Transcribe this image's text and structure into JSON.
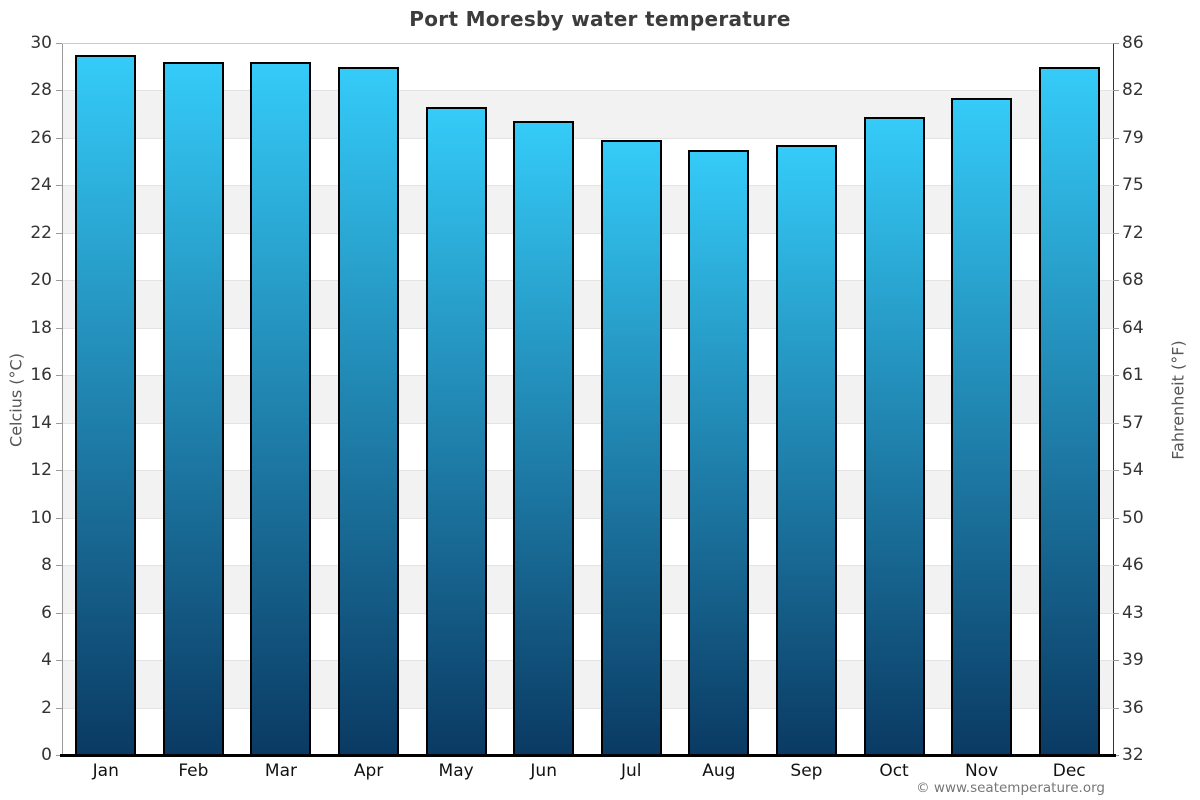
{
  "chart_data": {
    "type": "bar",
    "title": "Port Moresby water temperature",
    "categories": [
      "Jan",
      "Feb",
      "Mar",
      "Apr",
      "May",
      "Jun",
      "Jul",
      "Aug",
      "Sep",
      "Oct",
      "Nov",
      "Dec"
    ],
    "values": [
      29.5,
      29.2,
      29.2,
      29.0,
      27.3,
      26.7,
      25.9,
      25.5,
      25.7,
      26.9,
      27.7,
      29.0
    ],
    "series_name": "Water temperature (°C)",
    "ylabel_left": "Celcius (°C)",
    "ylabel_right": "Fahrenheit (°F)",
    "ylim_celsius": [
      0,
      30
    ],
    "celsius_ticks": [
      30,
      28,
      26,
      24,
      22,
      20,
      18,
      16,
      14,
      12,
      10,
      8,
      6,
      4,
      2,
      0
    ],
    "fahrenheit_ticks": [
      86,
      82,
      79,
      75,
      72,
      68,
      64,
      61,
      57,
      54,
      50,
      46,
      43,
      39,
      36,
      32
    ],
    "grid": "horizontal-bands",
    "legend": "none",
    "colors": {
      "bar_gradient_top": "#35cbf8",
      "bar_gradient_bottom": "#0a3a63",
      "bar_border": "#000000",
      "band_gray": "#f2f2f2",
      "band_white": "#ffffff",
      "axis_bottom": "#000000",
      "title_color": "#3c3c3c"
    }
  },
  "watermark": "© www.seatemperature.org"
}
